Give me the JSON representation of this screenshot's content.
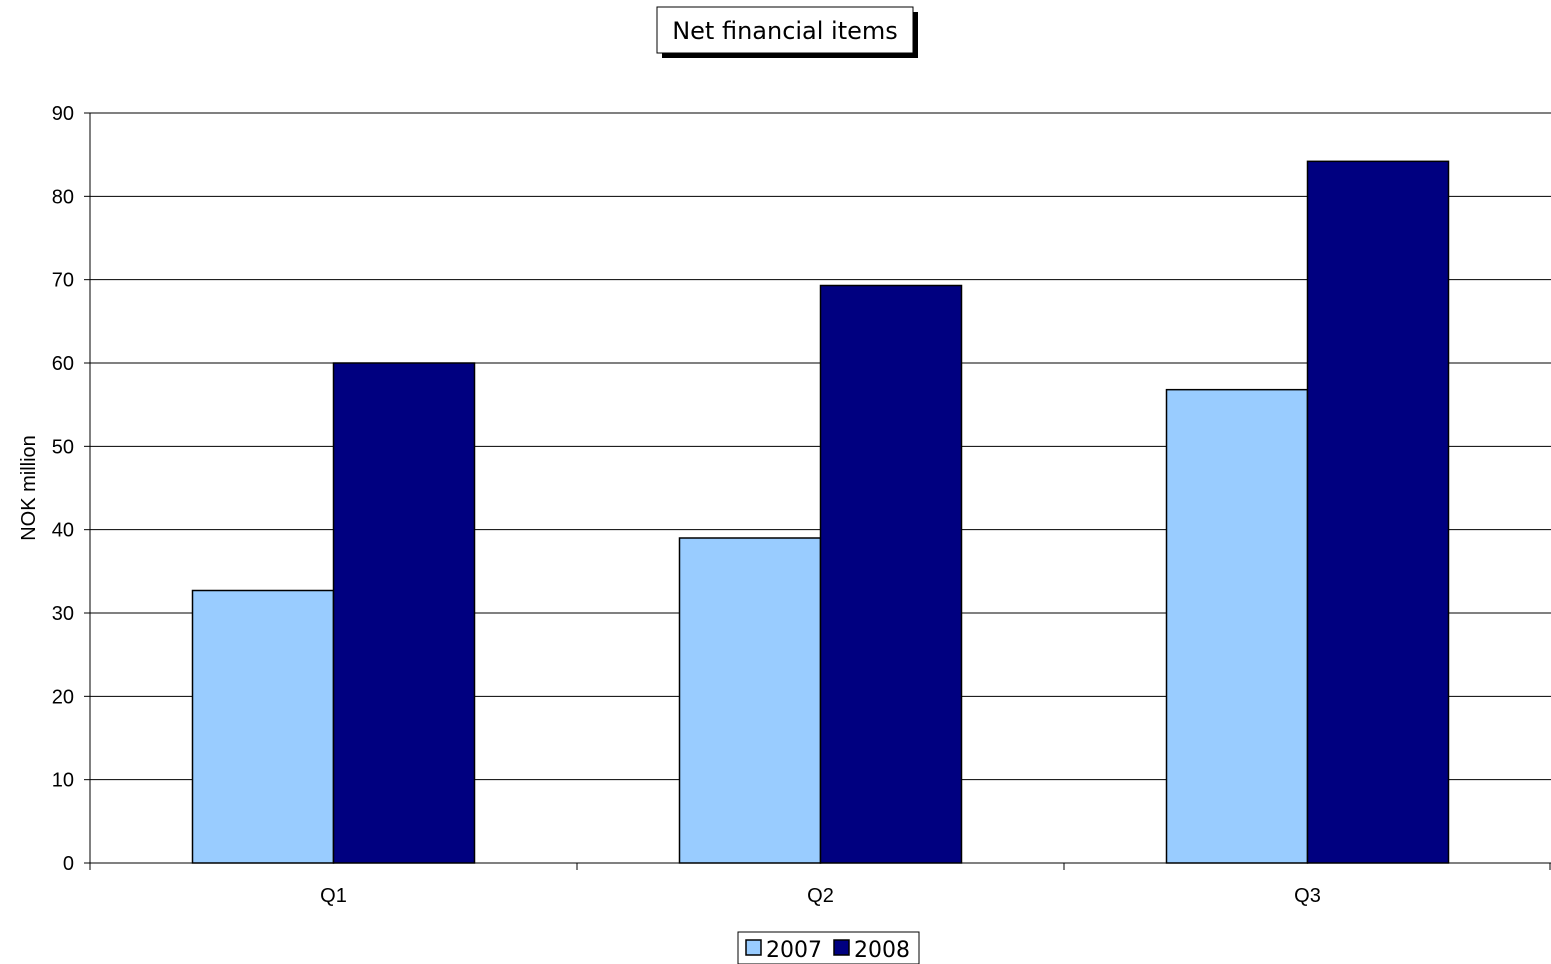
{
  "chart_data": {
    "type": "bar",
    "title": "Net financial items",
    "xlabel": "",
    "ylabel": "NOK million",
    "categories": [
      "Q1",
      "Q2",
      "Q3"
    ],
    "series": [
      {
        "name": "2007",
        "values": [
          32.7,
          39.0,
          56.8
        ],
        "color": "#99ccff"
      },
      {
        "name": "2008",
        "values": [
          60.0,
          69.3,
          84.2
        ],
        "color": "#000080"
      }
    ],
    "ylim": [
      0,
      90
    ],
    "yticks": [
      "0",
      "10",
      "20",
      "30",
      "40",
      "50",
      "60",
      "70",
      "80",
      "90"
    ],
    "grid": true,
    "legend_position": "bottom"
  }
}
